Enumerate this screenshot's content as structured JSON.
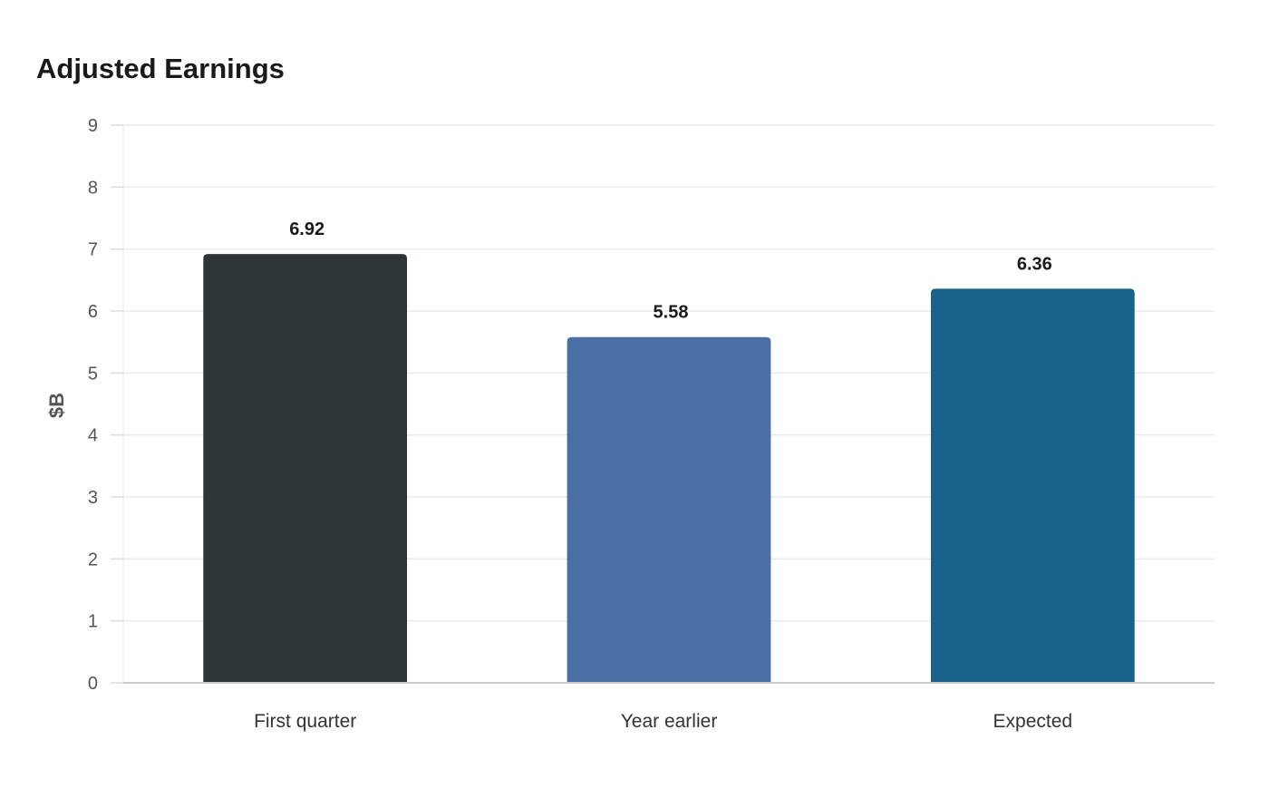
{
  "chart_data": {
    "type": "bar",
    "title": "Adjusted Earnings",
    "xlabel": "",
    "ylabel": "$B",
    "categories": [
      "First quarter",
      "Year earlier",
      "Expected"
    ],
    "values": [
      6.92,
      5.58,
      6.36
    ],
    "value_labels": [
      "6.92",
      "5.58",
      "6.36"
    ],
    "colors": [
      "#2e3538",
      "#4a6fa5",
      "#186189"
    ],
    "ylim": [
      0,
      9
    ],
    "yticks": [
      0,
      1,
      2,
      3,
      4,
      5,
      6,
      7,
      8,
      9
    ],
    "grid": true,
    "legend": "none"
  }
}
